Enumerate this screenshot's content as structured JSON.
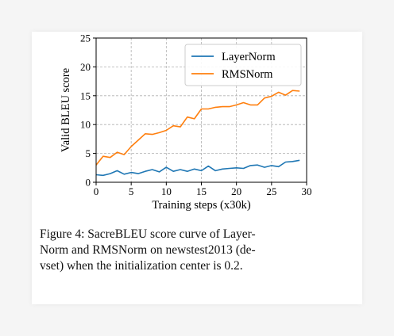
{
  "chart_data": {
    "type": "line",
    "xlabel": "Training steps (x30k)",
    "ylabel": "Valid BLEU score",
    "xlim": [
      0,
      30
    ],
    "ylim": [
      0,
      25
    ],
    "xticks": [
      0,
      5,
      10,
      15,
      20,
      25,
      30
    ],
    "yticks": [
      0,
      5,
      10,
      15,
      20,
      25
    ],
    "grid": true,
    "legend_position": "top-right",
    "x": [
      0,
      1,
      2,
      3,
      4,
      5,
      6,
      7,
      8,
      9,
      10,
      11,
      12,
      13,
      14,
      15,
      16,
      17,
      18,
      19,
      20,
      21,
      22,
      23,
      24,
      25,
      26,
      27,
      28,
      29
    ],
    "series": [
      {
        "name": "LayerNorm",
        "color": "#1f77b4",
        "values": [
          1.3,
          1.2,
          1.5,
          2.0,
          1.4,
          1.7,
          1.5,
          1.9,
          2.2,
          1.8,
          2.6,
          1.9,
          2.2,
          1.9,
          2.3,
          2.0,
          2.8,
          2.0,
          2.3,
          2.4,
          2.5,
          2.4,
          2.9,
          3.0,
          2.6,
          2.9,
          2.7,
          3.5,
          3.6,
          3.8
        ]
      },
      {
        "name": "RMSNorm",
        "color": "#ff7f0e",
        "values": [
          3.0,
          4.5,
          4.3,
          5.2,
          4.8,
          6.2,
          7.3,
          8.4,
          8.3,
          8.6,
          9.0,
          9.8,
          9.6,
          11.3,
          11.0,
          12.7,
          12.7,
          13.0,
          13.1,
          13.1,
          13.4,
          13.8,
          13.4,
          13.4,
          14.6,
          14.9,
          15.6,
          15.1,
          15.9,
          15.8
        ]
      }
    ]
  },
  "caption": {
    "line1": "Figure 4:  SacreBLEU score curve of Layer-",
    "line2": "Norm and RMSNorm on newstest2013 (de-",
    "line3": "vset) when the initialization center is 0.2."
  }
}
